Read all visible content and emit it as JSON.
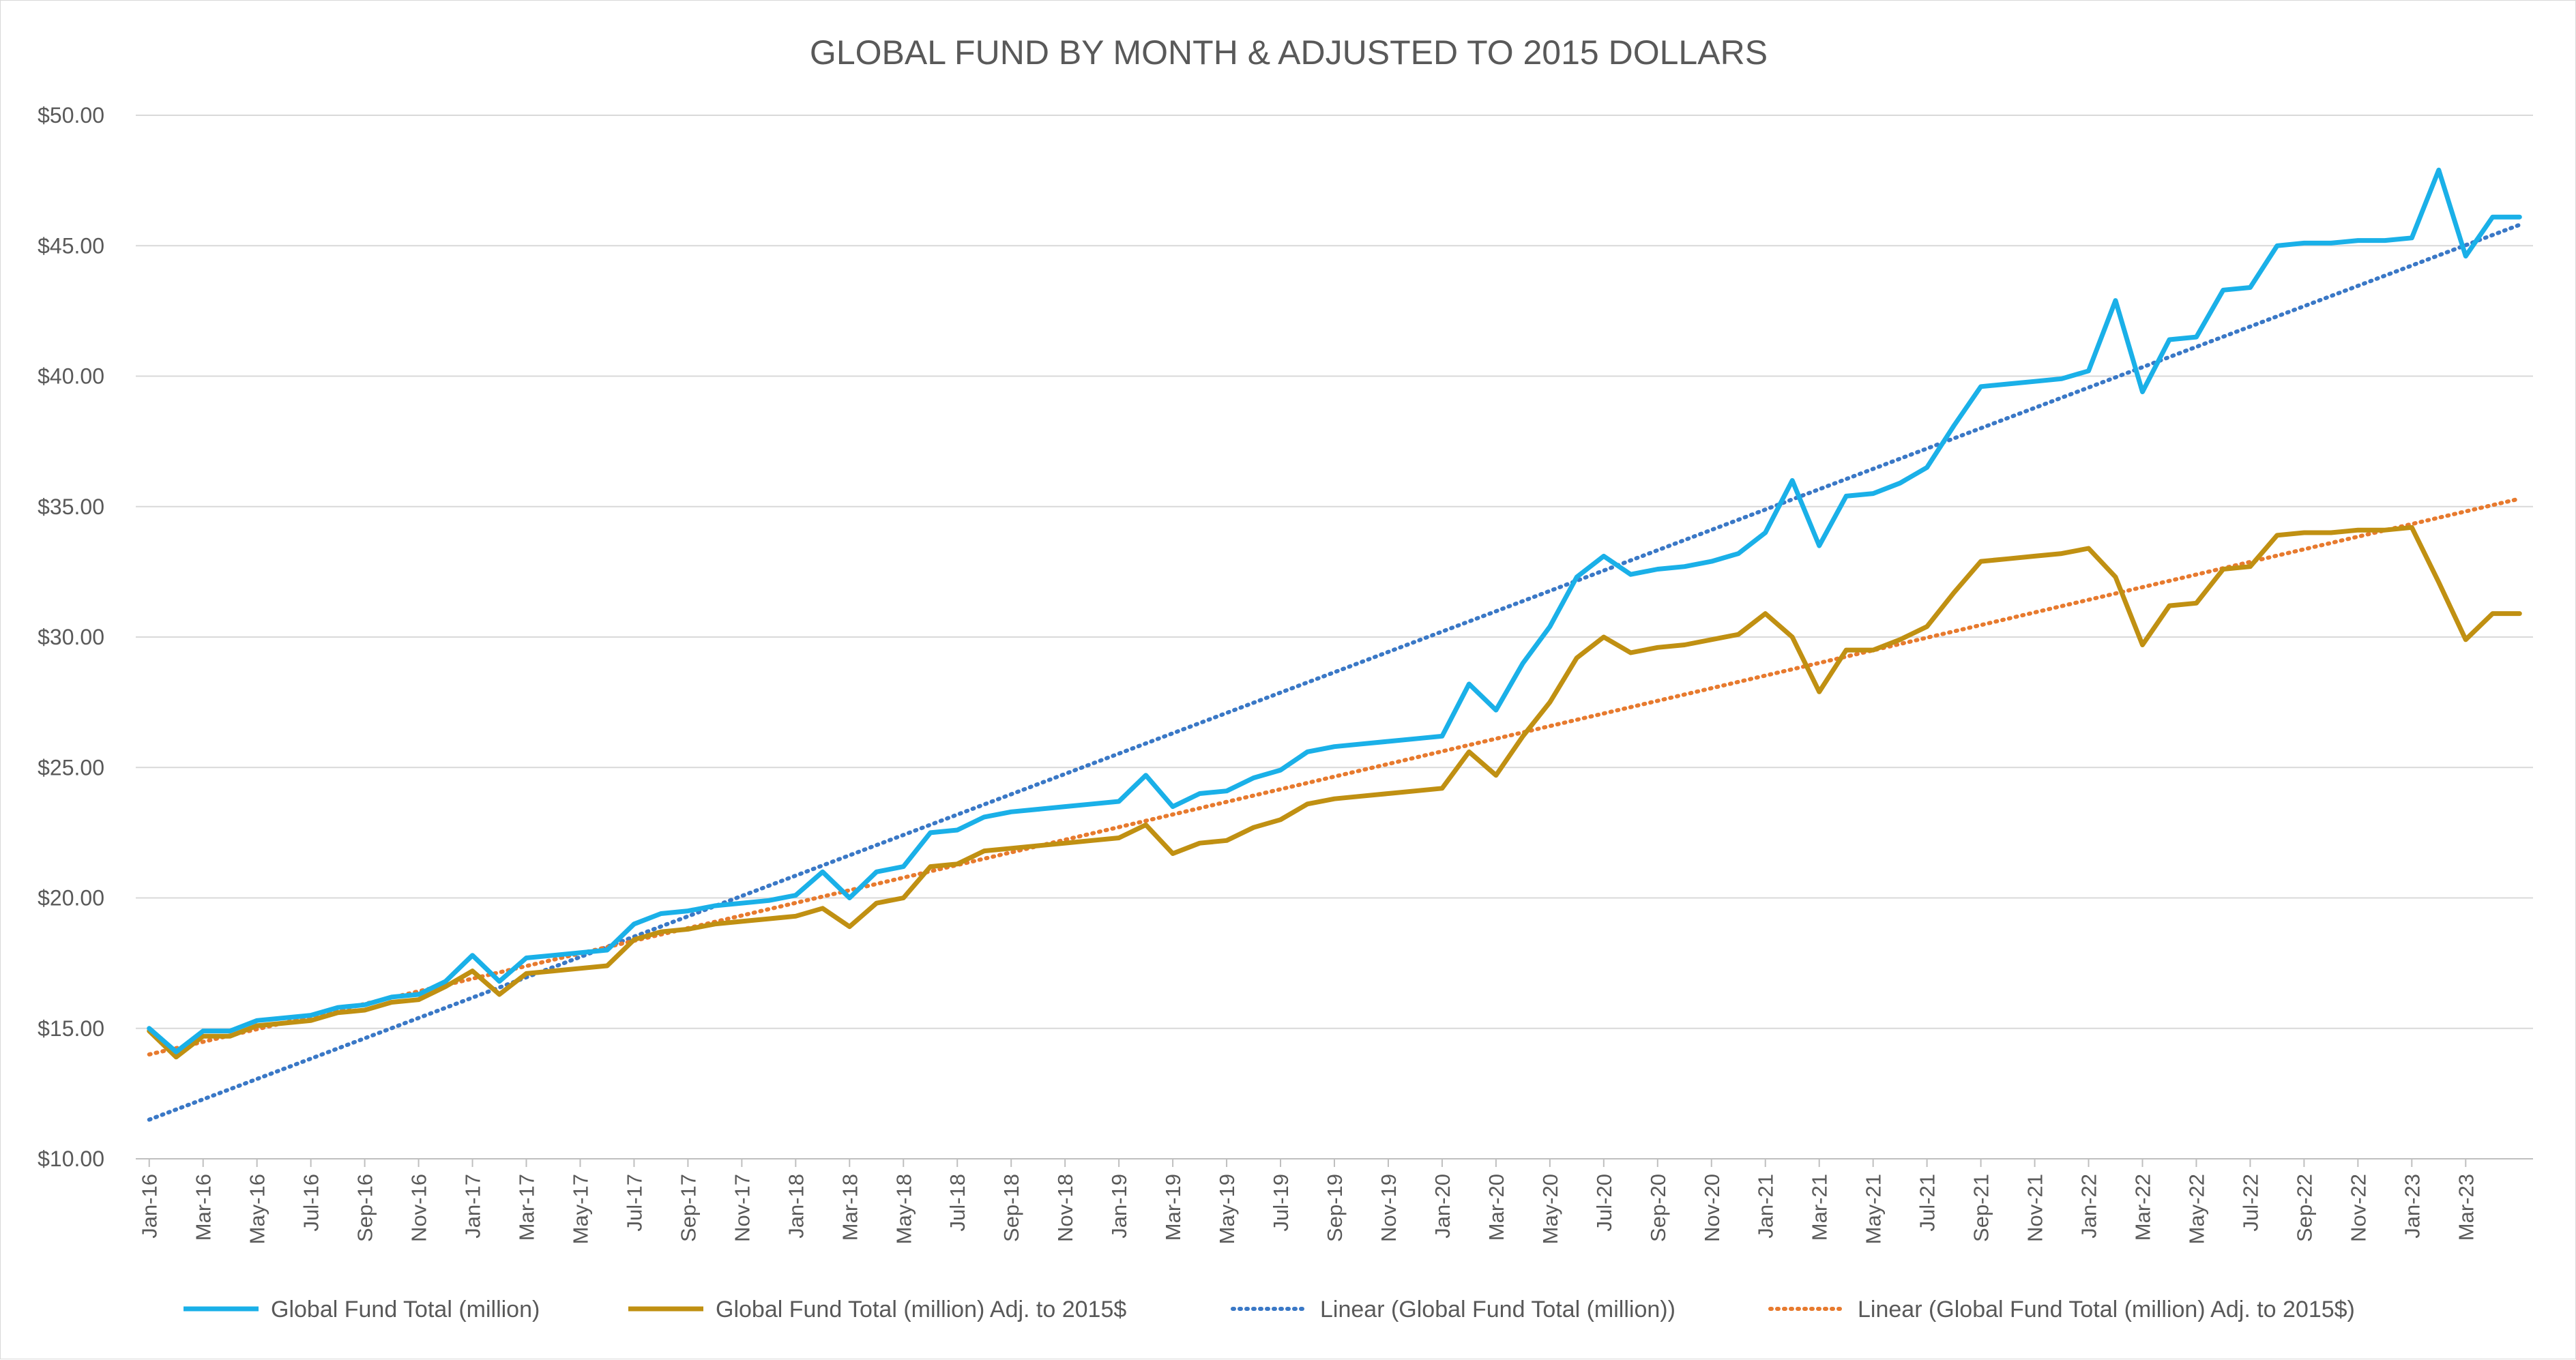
{
  "chart_data": {
    "type": "line",
    "title": "GLOBAL FUND BY MONTH & ADJUSTED TO 2015 DOLLARS",
    "xlabel": "",
    "ylabel": "",
    "ylim": [
      10,
      50
    ],
    "y_ticks": [
      "$10.00",
      "$15.00",
      "$20.00",
      "$25.00",
      "$30.00",
      "$35.00",
      "$40.00",
      "$45.00",
      "$50.00"
    ],
    "x_tick_labels": [
      "Jan-16",
      "Mar-16",
      "May-16",
      "Jul-16",
      "Sep-16",
      "Nov-16",
      "Jan-17",
      "Mar-17",
      "May-17",
      "Jul-17",
      "Sep-17",
      "Nov-17",
      "Jan-18",
      "Mar-18",
      "May-18",
      "Jul-18",
      "Sep-18",
      "Nov-18",
      "Jan-19",
      "Mar-19",
      "May-19",
      "Jul-19",
      "Sep-19",
      "Nov-19",
      "Jan-20",
      "Mar-20",
      "May-20",
      "Jul-20",
      "Sep-20",
      "Nov-20",
      "Jan-21",
      "Mar-21",
      "May-21",
      "Jul-21",
      "Sep-21",
      "Nov-21",
      "Jan-22",
      "Mar-22",
      "May-22",
      "Jul-22",
      "Sep-22",
      "Nov-22",
      "Jan-23",
      "Mar-23"
    ],
    "x_start": "Jan-16",
    "x_end": "Apr-23",
    "grid": true,
    "legend_position": "bottom",
    "series": [
      {
        "name": "Global Fund Total (million)",
        "color": "#1ab0e8",
        "style": "solid",
        "values": [
          15.0,
          14.1,
          14.9,
          14.9,
          15.3,
          15.4,
          15.5,
          15.8,
          15.9,
          16.2,
          16.3,
          16.8,
          17.8,
          16.8,
          17.7,
          17.8,
          17.9,
          18.0,
          19.0,
          19.4,
          19.5,
          19.7,
          19.8,
          19.9,
          20.1,
          21.0,
          20.0,
          21.0,
          21.2,
          22.5,
          22.6,
          23.1,
          23.3,
          23.4,
          23.5,
          23.6,
          23.7,
          24.7,
          23.5,
          24.0,
          24.1,
          24.6,
          24.9,
          25.6,
          25.8,
          25.9,
          26.0,
          26.1,
          26.2,
          28.2,
          27.2,
          29.0,
          30.4,
          32.3,
          33.1,
          32.4,
          32.6,
          32.7,
          32.9,
          33.2,
          34.0,
          36.0,
          33.5,
          35.4,
          35.5,
          35.9,
          36.5,
          38.1,
          39.6,
          39.7,
          39.8,
          39.9,
          40.2,
          42.9,
          39.4,
          41.4,
          41.5,
          43.3,
          43.4,
          45.0,
          45.1,
          45.1,
          45.2,
          45.2,
          45.3,
          47.9,
          44.6,
          46.1,
          46.1
        ]
      },
      {
        "name": "Global Fund Total (million) Adj. to 2015$",
        "color": "#c09012",
        "style": "solid",
        "values": [
          14.9,
          13.9,
          14.7,
          14.7,
          15.1,
          15.2,
          15.3,
          15.6,
          15.7,
          16.0,
          16.1,
          16.6,
          17.2,
          16.3,
          17.1,
          17.2,
          17.3,
          17.4,
          18.4,
          18.7,
          18.8,
          19.0,
          19.1,
          19.2,
          19.3,
          19.6,
          18.9,
          19.8,
          20.0,
          21.2,
          21.3,
          21.8,
          21.9,
          22.0,
          22.1,
          22.2,
          22.3,
          22.8,
          21.7,
          22.1,
          22.2,
          22.7,
          23.0,
          23.6,
          23.8,
          23.9,
          24.0,
          24.1,
          24.2,
          25.6,
          24.7,
          26.2,
          27.5,
          29.2,
          30.0,
          29.4,
          29.6,
          29.7,
          29.9,
          30.1,
          30.9,
          30.0,
          27.9,
          29.5,
          29.5,
          29.9,
          30.4,
          31.7,
          32.9,
          33.0,
          33.1,
          33.2,
          33.4,
          32.3,
          29.7,
          31.2,
          31.3,
          32.6,
          32.7,
          33.9,
          34.0,
          34.0,
          34.1,
          34.1,
          34.2,
          32.1,
          29.9,
          30.9,
          30.9
        ]
      },
      {
        "name": "Linear (Global Fund Total (million))",
        "color": "#3a78c6",
        "style": "dotted",
        "start": 11.5,
        "end": 45.8
      },
      {
        "name": "Linear (Global Fund Total (million) Adj. to 2015$)",
        "color": "#e77a2e",
        "style": "dotted",
        "start": 14.0,
        "end": 35.3
      }
    ]
  }
}
